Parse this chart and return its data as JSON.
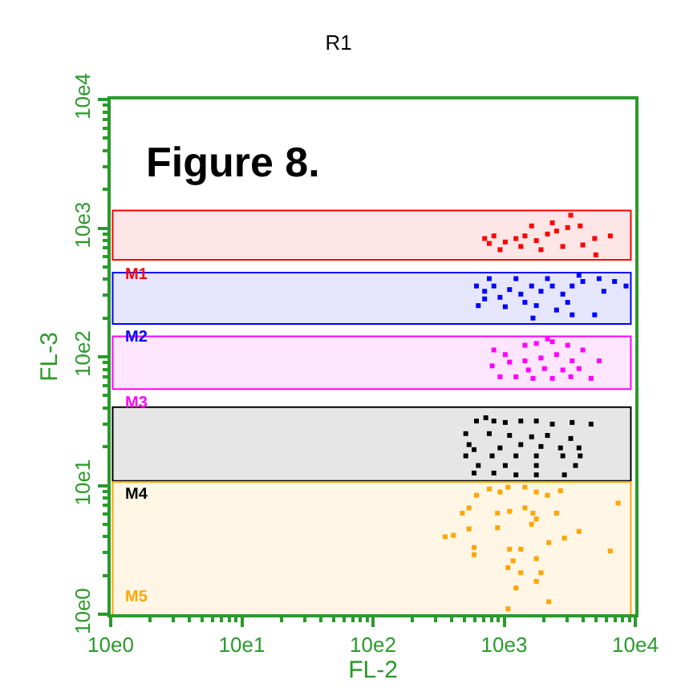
{
  "chart_data": {
    "type": "scatter",
    "title": "R1",
    "xlabel": "FL-2",
    "ylabel": "FL-3",
    "annotations": [
      "Figure 8."
    ],
    "log": "xy",
    "grid": false,
    "marker": "square",
    "xlim": [
      10,
      100000
    ],
    "ylim": [
      10,
      100000
    ],
    "xticks": [
      {
        "value": 10,
        "label": "10e0"
      },
      {
        "value": 100,
        "label": "10e1"
      },
      {
        "value": 1000,
        "label": "10e2"
      },
      {
        "value": 10000,
        "label": "10e3"
      },
      {
        "value": 100000,
        "label": "10e4"
      }
    ],
    "yticks": [
      {
        "value": 10,
        "label": "10e0"
      },
      {
        "value": 100,
        "label": "10e1"
      },
      {
        "value": 1000,
        "label": "10e2"
      },
      {
        "value": 10000,
        "label": "10e3"
      },
      {
        "value": 100000,
        "label": "10e4"
      }
    ],
    "bands": [
      {
        "axis": "y",
        "from": 5750,
        "to": 13500,
        "label": "M1",
        "color": "#ff0000"
      },
      {
        "axis": "y",
        "from": 1830,
        "to": 4450,
        "label": "M2",
        "color": "#0000ff"
      },
      {
        "axis": "y",
        "from": 570,
        "to": 1420,
        "label": "M3",
        "color": "#ff00ff"
      },
      {
        "axis": "y",
        "from": 110,
        "to": 400,
        "label": "M4",
        "color": "#000000"
      },
      {
        "axis": "y",
        "from": 10,
        "to": 105,
        "label": "M5",
        "color": "#ffa500"
      }
    ],
    "series": [
      {
        "color": "#ff0000",
        "x": [
          7100,
          8350,
          10200,
          12300,
          14400,
          17600,
          21400,
          25100,
          30500,
          38000,
          49000,
          64500,
          9300,
          13400,
          19100,
          28000,
          39800,
          50000,
          16200,
          23300,
          32200,
          7700
        ],
        "values": [
          8300,
          8700,
          7800,
          8300,
          8700,
          8000,
          9000,
          9500,
          10100,
          10400,
          8300,
          8700,
          6800,
          7200,
          6800,
          7200,
          7400,
          6200,
          10400,
          11000,
          12600,
          7600
        ]
      },
      {
        "color": "#0000ff",
        "x": [
          6150,
          7100,
          6350,
          8350,
          9300,
          11000,
          13400,
          16200,
          19100,
          23300,
          28000,
          33000,
          39800,
          53000,
          69500,
          85000,
          7700,
          12300,
          21400,
          37200,
          10200,
          17600,
          25100,
          16600,
          33000,
          49000,
          7100,
          14400,
          30500,
          57600
        ],
        "values": [
          3550,
          3230,
          2500,
          3550,
          2900,
          3330,
          3070,
          3550,
          3230,
          3550,
          3070,
          3550,
          3850,
          4050,
          3850,
          3550,
          4050,
          4050,
          4050,
          4300,
          2450,
          2500,
          2310,
          2000,
          2120,
          2120,
          2820,
          2650,
          2650,
          3230
        ]
      },
      {
        "color": "#ff00ff",
        "x": [
          8350,
          10200,
          8100,
          9300,
          14400,
          17600,
          23300,
          30500,
          39800,
          53000,
          14400,
          19100,
          25100,
          33000,
          15300,
          20300,
          28000,
          37200,
          16600,
          23300,
          32200,
          46000,
          12300,
          11000,
          21400
        ],
        "values": [
          1130,
          1040,
          850,
          700,
          1230,
          1270,
          1310,
          1230,
          1130,
          930,
          930,
          980,
          1040,
          930,
          790,
          810,
          790,
          810,
          680,
          680,
          700,
          680,
          700,
          910,
          1380
        ]
      },
      {
        "color": "#000000",
        "x": [
          5100,
          6150,
          7250,
          8350,
          10200,
          13400,
          17600,
          23300,
          33000,
          46000,
          5400,
          7700,
          11000,
          16200,
          21400,
          32200,
          5900,
          9300,
          13400,
          19100,
          26900,
          37200,
          5100,
          8100,
          12300,
          17600,
          28000,
          38000,
          6350,
          10200,
          17600,
          35000,
          5900,
          8350,
          12300,
          17600,
          28800
        ],
        "values": [
          253,
          317,
          336,
          317,
          309,
          317,
          317,
          300,
          309,
          300,
          208,
          253,
          245,
          239,
          245,
          232,
          190,
          196,
          208,
          201,
          196,
          196,
          170,
          170,
          170,
          170,
          170,
          170,
          143,
          143,
          143,
          143,
          125,
          125,
          121,
          121,
          121
        ]
      },
      {
        "color": "#ffa500",
        "x": [
          6150,
          7700,
          9300,
          10700,
          14400,
          17600,
          21400,
          26900,
          4800,
          5400,
          8900,
          11000,
          14400,
          16600,
          25100,
          74000,
          3550,
          4100,
          5400,
          8900,
          21900,
          28800,
          37200,
          5900,
          5900,
          11000,
          13400,
          17600,
          64500,
          11700,
          10700,
          13400,
          19100,
          12300,
          17600,
          21900,
          10700,
          16200,
          17600
        ],
        "values": [
          84,
          94,
          89,
          97,
          97,
          89,
          84,
          91,
          61,
          67,
          61,
          63,
          67,
          61,
          61,
          73,
          40,
          41,
          46,
          47,
          36,
          39,
          44,
          33,
          29,
          32,
          32,
          27,
          31,
          26,
          23,
          21,
          21,
          16,
          18,
          12.5,
          11,
          50,
          55
        ]
      }
    ]
  }
}
